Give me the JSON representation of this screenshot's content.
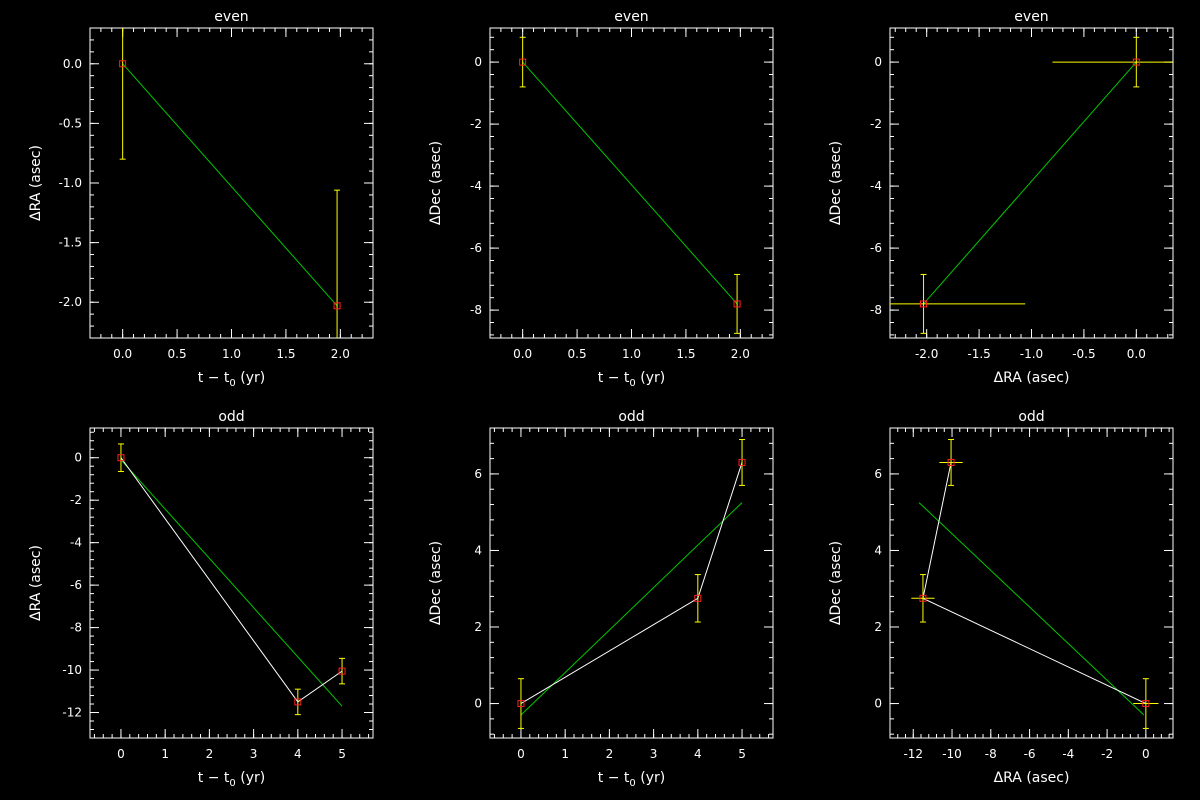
{
  "colors": {
    "background": "#000000",
    "axes": "#ffffff",
    "fit_line": "#00c800",
    "connect_line": "#ffffff",
    "error_bar": "#ffff00",
    "marker": "#ff2020"
  },
  "chart_data": [
    {
      "type": "scatter",
      "title": "even",
      "xlabel": "t − t",
      "xlabel_sub": "0",
      "xlabel_tail": " (yr)",
      "ylabel": "ΔRA (asec)",
      "xlim": [
        -0.3,
        2.3
      ],
      "ylim": [
        -2.3,
        0.3
      ],
      "xticks": [
        0.0,
        0.5,
        1.0,
        1.5,
        2.0
      ],
      "xtick_labels": [
        "0.0",
        "0.5",
        "1.0",
        "1.5",
        "2.0"
      ],
      "yticks": [
        -2.0,
        -1.5,
        -1.0,
        -0.5,
        0.0
      ],
      "ytick_labels": [
        "-2.0",
        "-1.5",
        "-1.0",
        "-0.5",
        "0.0"
      ],
      "points": [
        {
          "x": 0.0,
          "y": 0.0,
          "yerr": 0.8
        },
        {
          "x": 1.97,
          "y": -2.03,
          "yerr": 0.97
        }
      ],
      "connect": false,
      "fit_line": [
        [
          0.0,
          0.0
        ],
        [
          1.97,
          -2.03
        ]
      ]
    },
    {
      "type": "scatter",
      "title": "even",
      "xlabel": "t − t",
      "xlabel_sub": "0",
      "xlabel_tail": " (yr)",
      "ylabel": "ΔDec (asec)",
      "xlim": [
        -0.3,
        2.3
      ],
      "ylim": [
        -8.9,
        1.1
      ],
      "xticks": [
        0.0,
        0.5,
        1.0,
        1.5,
        2.0
      ],
      "xtick_labels": [
        "0.0",
        "0.5",
        "1.0",
        "1.5",
        "2.0"
      ],
      "yticks": [
        -8,
        -6,
        -4,
        -2,
        0
      ],
      "ytick_labels": [
        "-8",
        "-6",
        "-4",
        "-2",
        "0"
      ],
      "points": [
        {
          "x": 0.0,
          "y": 0.0,
          "yerr": 0.8
        },
        {
          "x": 1.97,
          "y": -7.8,
          "yerr": 0.95
        }
      ],
      "connect": false,
      "fit_line": [
        [
          0.0,
          0.0
        ],
        [
          1.97,
          -7.8
        ]
      ]
    },
    {
      "type": "scatter",
      "title": "even",
      "xlabel": "ΔRA (asec)",
      "xlabel_sub": "",
      "xlabel_tail": "",
      "ylabel": "ΔDec (asec)",
      "xlim": [
        -2.35,
        0.35
      ],
      "ylim": [
        -8.9,
        1.1
      ],
      "xticks": [
        -2.0,
        -1.5,
        -1.0,
        -0.5,
        0.0
      ],
      "xtick_labels": [
        "-2.0",
        "-1.5",
        "-1.0",
        "-0.5",
        "0.0"
      ],
      "yticks": [
        -8,
        -6,
        -4,
        -2,
        0
      ],
      "ytick_labels": [
        "-8",
        "-6",
        "-4",
        "-2",
        "0"
      ],
      "points": [
        {
          "x": 0.0,
          "y": 0.0,
          "xerr": 0.8,
          "yerr": 0.8
        },
        {
          "x": -2.03,
          "y": -7.8,
          "xerr": 0.97,
          "yerr": 0.95
        }
      ],
      "connect": false,
      "fit_line": [
        [
          0.0,
          0.0
        ],
        [
          -2.03,
          -7.8
        ]
      ]
    },
    {
      "type": "scatter",
      "title": "odd",
      "xlabel": "t − t",
      "xlabel_sub": "0",
      "xlabel_tail": " (yr)",
      "ylabel": "ΔRA (asec)",
      "xlim": [
        -0.7,
        5.7
      ],
      "ylim": [
        -13.2,
        1.4
      ],
      "xticks": [
        0,
        1,
        2,
        3,
        4,
        5
      ],
      "xtick_labels": [
        "0",
        "1",
        "2",
        "3",
        "4",
        "5"
      ],
      "yticks": [
        -12,
        -10,
        -8,
        -6,
        -4,
        -2,
        0
      ],
      "ytick_labels": [
        "-12",
        "-10",
        "-8",
        "-6",
        "-4",
        "-2",
        "0"
      ],
      "points": [
        {
          "x": 0.0,
          "y": 0.0,
          "yerr": 0.65
        },
        {
          "x": 4.0,
          "y": -11.5,
          "yerr": 0.6
        },
        {
          "x": 5.0,
          "y": -10.05,
          "yerr": 0.6
        }
      ],
      "connect": true,
      "fit_line": [
        [
          0.0,
          -0.1
        ],
        [
          5.0,
          -11.7
        ]
      ]
    },
    {
      "type": "scatter",
      "title": "odd",
      "xlabel": "t − t",
      "xlabel_sub": "0",
      "xlabel_tail": " (yr)",
      "ylabel": "ΔDec (asec)",
      "xlim": [
        -0.7,
        5.7
      ],
      "ylim": [
        -0.9,
        7.2
      ],
      "xticks": [
        0,
        1,
        2,
        3,
        4,
        5
      ],
      "xtick_labels": [
        "0",
        "1",
        "2",
        "3",
        "4",
        "5"
      ],
      "yticks": [
        0,
        2,
        4,
        6
      ],
      "ytick_labels": [
        "0",
        "2",
        "4",
        "6"
      ],
      "points": [
        {
          "x": 0.0,
          "y": 0.0,
          "yerr": 0.65
        },
        {
          "x": 4.0,
          "y": 2.75,
          "yerr": 0.62
        },
        {
          "x": 5.0,
          "y": 6.3,
          "yerr": 0.6
        }
      ],
      "connect": true,
      "fit_line": [
        [
          0.0,
          -0.3
        ],
        [
          5.0,
          5.25
        ]
      ]
    },
    {
      "type": "scatter",
      "title": "odd",
      "xlabel": "ΔRA (asec)",
      "xlabel_sub": "",
      "xlabel_tail": "",
      "ylabel": "ΔDec (asec)",
      "xlim": [
        -13.2,
        1.4
      ],
      "ylim": [
        -0.9,
        7.2
      ],
      "xticks": [
        -12,
        -10,
        -8,
        -6,
        -4,
        -2,
        0
      ],
      "xtick_labels": [
        "-12",
        "-10",
        "-8",
        "-6",
        "-4",
        "-2",
        "0"
      ],
      "yticks": [
        0,
        2,
        4,
        6
      ],
      "ytick_labels": [
        "0",
        "2",
        "4",
        "6"
      ],
      "points": [
        {
          "x": 0.0,
          "y": 0.0,
          "xerr": 0.65,
          "yerr": 0.65
        },
        {
          "x": -11.5,
          "y": 2.75,
          "xerr": 0.6,
          "yerr": 0.62
        },
        {
          "x": -10.05,
          "y": 6.3,
          "xerr": 0.6,
          "yerr": 0.6
        }
      ],
      "connect": true,
      "fit_line": [
        [
          -11.7,
          5.25
        ],
        [
          -0.1,
          -0.3
        ]
      ]
    }
  ]
}
